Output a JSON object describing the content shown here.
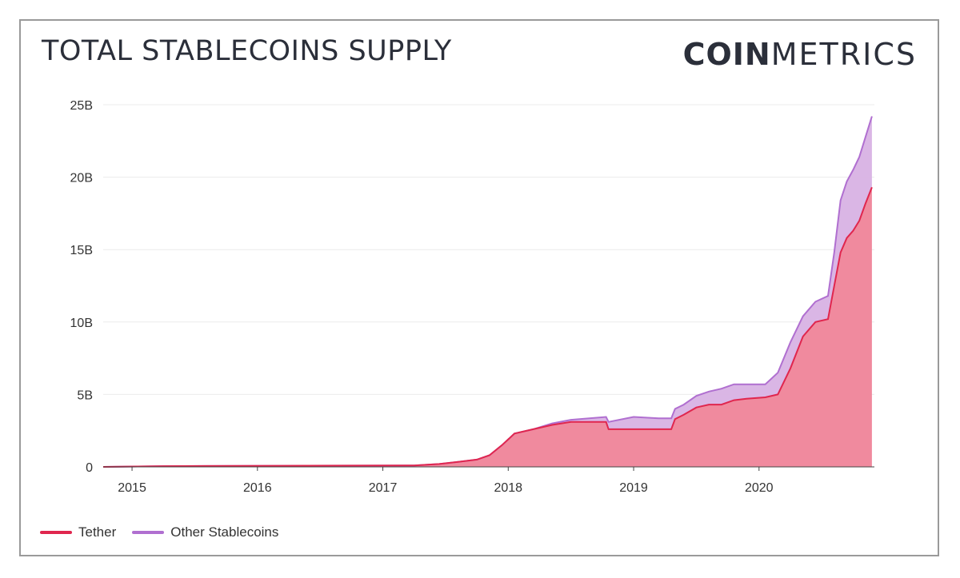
{
  "header": {
    "title": "TOTAL STABLECOINS SUPPLY",
    "brand_bold": "COIN",
    "brand_light": "METRICS"
  },
  "colors": {
    "tether_line": "#e0264e",
    "tether_fill": "#f08a9e",
    "other_line": "#b06fd0",
    "other_fill": "#d8b2e4",
    "grid": "#ececec",
    "axis": "#333333"
  },
  "chart_data": {
    "type": "area",
    "title": "TOTAL STABLECOINS SUPPLY",
    "stacked": true,
    "xlabel": "",
    "ylabel": "",
    "ylim": [
      0,
      25
    ],
    "y_unit": "B",
    "y_ticks": [
      0,
      5,
      10,
      15,
      20,
      25
    ],
    "y_tick_labels": [
      "0",
      "5B",
      "10B",
      "15B",
      "20B",
      "25B"
    ],
    "x_tick_labels": [
      "2015",
      "2016",
      "2017",
      "2018",
      "2019",
      "2020"
    ],
    "x_tick_values": [
      2015.0,
      2016.0,
      2017.0,
      2018.0,
      2019.0,
      2020.0
    ],
    "xlim": [
      2014.77,
      2020.92
    ],
    "grid": true,
    "legend_position": "bottom-left",
    "x": [
      2014.77,
      2015.25,
      2016.2,
      2017.25,
      2017.45,
      2017.6,
      2017.75,
      2017.85,
      2017.95,
      2018.05,
      2018.2,
      2018.35,
      2018.5,
      2018.78,
      2018.8,
      2019.0,
      2019.2,
      2019.3,
      2019.33,
      2019.4,
      2019.5,
      2019.6,
      2019.7,
      2019.8,
      2019.9,
      2020.05,
      2020.15,
      2020.25,
      2020.35,
      2020.45,
      2020.55,
      2020.6,
      2020.65,
      2020.7,
      2020.75,
      2020.8,
      2020.85,
      2020.9
    ],
    "series": [
      {
        "name": "Tether",
        "values": [
          0.0,
          0.05,
          0.08,
          0.1,
          0.2,
          0.35,
          0.5,
          0.8,
          1.5,
          2.3,
          2.6,
          2.9,
          3.1,
          3.1,
          2.6,
          2.6,
          2.6,
          2.6,
          3.3,
          3.6,
          4.1,
          4.3,
          4.3,
          4.6,
          4.7,
          4.8,
          5.0,
          6.8,
          9.0,
          10.0,
          10.2,
          12.5,
          14.8,
          15.8,
          16.3,
          17.0,
          18.2,
          19.3
        ]
      },
      {
        "name": "Other Stablecoins",
        "values": [
          0.0,
          0.0,
          0.0,
          0.0,
          0.0,
          0.0,
          0.0,
          0.0,
          0.0,
          0.0,
          0.0,
          0.1,
          0.15,
          0.35,
          0.5,
          0.85,
          0.75,
          0.75,
          0.7,
          0.7,
          0.8,
          0.9,
          1.1,
          1.1,
          1.0,
          0.9,
          1.5,
          1.8,
          1.4,
          1.4,
          1.6,
          2.3,
          3.6,
          3.9,
          4.2,
          4.4,
          4.6,
          4.9
        ]
      }
    ]
  },
  "legend": {
    "items": [
      {
        "label": "Tether"
      },
      {
        "label": "Other Stablecoins"
      }
    ]
  }
}
